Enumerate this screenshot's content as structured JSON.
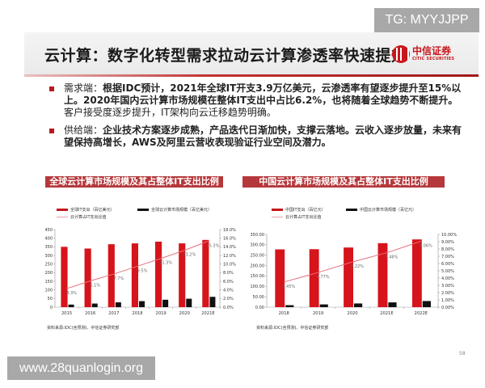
{
  "watermarks": {
    "top_right": "TG: MYYJJPP",
    "bottom_left": "www.28quanlogin.org"
  },
  "slide": {
    "title": "云计算：数字化转型需求拉动云计算渗透率快速提升",
    "logo": {
      "cn": "中信证券",
      "en": "CITIC SECURITIES"
    },
    "colors": {
      "brand_red": "#c8161d",
      "bar_red": "#d6141b",
      "bar_black": "#111111",
      "line_pink": "#e8707a",
      "title_bg": "#b5383b"
    },
    "bullets": [
      {
        "label": "需求端：",
        "text": "根据IDC预计，2021年全球IT开支3.9万亿美元，云渗透率有望逐步提升至15%以上。2020年国内云计算市场规模在整体IT支出中占比6.2%，也将随着全球趋势不断提升。",
        "tail": "客户接受度逐步提升，IT架构向云迁移趋势明确。"
      },
      {
        "label": "供给端：",
        "text": "企业技术方案逐步成熟，产品迭代日渐加快，支撑云落地。云收入逐步放量，未来有望保持高增长，AWS及阿里云营收表现验证行业空间及潜力。",
        "tail": ""
      }
    ],
    "page_number": "58"
  },
  "charts": {
    "left": {
      "title": "全球云计算市场规模及其占整体IT支出比例",
      "legend": [
        "全球IT支出（百亿美元）",
        "全球云计算市场规模（百亿美元）",
        "云计算占IT支出比值"
      ],
      "source": "资料来源:IDC(含预测)、中信证券研究部"
    },
    "right": {
      "title": "中国云计算市场规模及其占整体IT支出比例",
      "legend": [
        "中国IT支出（百亿元）",
        "中国云计算市场规模（百亿元）",
        "云计算占IT支出比值"
      ],
      "source": "资料来源:IDC(含预测)、中信证券研究部"
    }
  },
  "chart_data": [
    {
      "type": "bar",
      "title": "全球云计算市场规模及其占整体IT支出比例",
      "categories": [
        "2015",
        "2016",
        "2017",
        "2018",
        "2019",
        "2020",
        "2021E"
      ],
      "series": [
        {
          "name": "全球IT支出（百亿美元）",
          "type": "bar",
          "axis": "left",
          "values": [
            350,
            340,
            365,
            370,
            380,
            370,
            390
          ]
        },
        {
          "name": "全球云计算市场规模（百亿美元）",
          "type": "bar",
          "axis": "left",
          "values": [
            15,
            21,
            28,
            35,
            43,
            49,
            60
          ]
        },
        {
          "name": "云计算占IT支出比值",
          "type": "line",
          "axis": "right",
          "values": [
            4.3,
            6.1,
            7.7,
            9.5,
            11.3,
            13.2,
            15.3
          ],
          "labels": [
            "4.3%",
            "6.1%",
            "7.7%",
            "9.5%",
            "11.3%",
            "13.2%",
            "15.3%"
          ]
        }
      ],
      "ylim_left": [
        0,
        450
      ],
      "yticks_left": [
        "0",
        "50",
        "100",
        "150",
        "200",
        "250",
        "300",
        "350",
        "400",
        "450"
      ],
      "ylim_right": [
        0,
        18
      ],
      "yticks_right": [
        "0.0%",
        "2.0%",
        "4.0%",
        "6.0%",
        "8.0%",
        "10.0%",
        "12.0%",
        "14.0%",
        "16.0%",
        "18.0%"
      ],
      "legend_position": "top",
      "grid": false
    },
    {
      "type": "bar",
      "title": "中国云计算市场规模及其占整体IT支出比例",
      "categories": [
        "2018",
        "2019",
        "2020",
        "2021E",
        "2022E"
      ],
      "series": [
        {
          "name": "中国IT支出（百亿元）",
          "type": "bar",
          "axis": "left",
          "values": [
            278,
            279,
            287,
            308,
            326
          ]
        },
        {
          "name": "中国云计算市场规模（百亿元）",
          "type": "bar",
          "axis": "left",
          "values": [
            9.6,
            13.3,
            17.8,
            23.0,
            29.5
          ]
        },
        {
          "name": "云计算占IT支出比值",
          "type": "line",
          "axis": "right",
          "values": [
            3.45,
            4.77,
            6.22,
            7.48,
            9.06
          ],
          "labels": [
            "3.45%",
            "4.77%",
            "6.22%",
            "7.48%",
            "9.06%"
          ]
        }
      ],
      "ylim_left": [
        0,
        350
      ],
      "yticks_left": [
        "0.00",
        "50.00",
        "100.00",
        "150.00",
        "200.00",
        "250.00",
        "300.00",
        "350.00"
      ],
      "ylim_right": [
        0,
        10
      ],
      "yticks_right": [
        "0.00%",
        "1.00%",
        "2.00%",
        "3.00%",
        "4.00%",
        "5.00%",
        "6.00%",
        "7.00%",
        "8.00%",
        "9.00%",
        "10.00%"
      ],
      "legend_position": "top",
      "grid": false
    }
  ]
}
